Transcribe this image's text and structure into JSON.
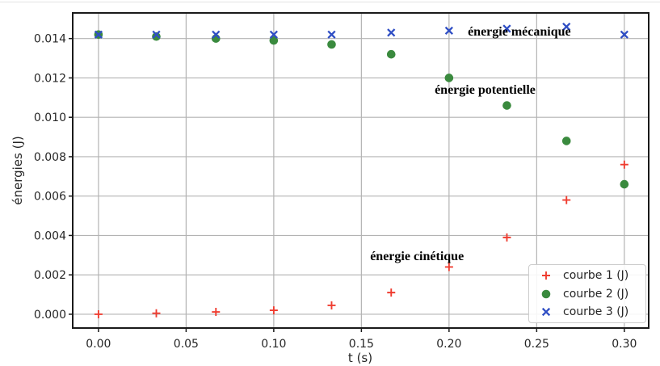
{
  "chart_data": {
    "type": "scatter",
    "title": "",
    "xlabel": "t (s)",
    "ylabel": "énergies (J)",
    "xlim": [
      -0.0147,
      0.3139
    ],
    "ylim": [
      -0.0007,
      0.0153
    ],
    "grid": true,
    "colors": {
      "grid": "#b3b3b3",
      "spine": "#1a1a1a",
      "tick_text": "#262626",
      "background": "#ffffff"
    },
    "x": [
      0.0,
      0.033,
      0.067,
      0.1,
      0.133,
      0.167,
      0.2,
      0.233,
      0.267,
      0.3
    ],
    "series": [
      {
        "name": "courbe 1 (J)",
        "marker": "plus",
        "color": "#ef3d30",
        "values": [
          0.0,
          5e-05,
          0.00012,
          0.0002,
          0.00045,
          0.0011,
          0.0024,
          0.0039,
          0.0058,
          0.0076
        ]
      },
      {
        "name": "courbe 2 (J)",
        "marker": "circle",
        "color": "#3a8a3e",
        "values": [
          0.0142,
          0.0141,
          0.014,
          0.0139,
          0.0137,
          0.0132,
          0.012,
          0.0106,
          0.0088,
          0.0066
        ]
      },
      {
        "name": "courbe 3 (J)",
        "marker": "x",
        "color": "#2f4ec4",
        "values": [
          0.0142,
          0.0142,
          0.0142,
          0.0142,
          0.0142,
          0.0143,
          0.0144,
          0.0145,
          0.0146,
          0.0142
        ]
      }
    ],
    "xtick_values": [
      0.0,
      0.05,
      0.1,
      0.15,
      0.2,
      0.25,
      0.3
    ],
    "xtick_labels": [
      "0.00",
      "0.05",
      "0.10",
      "0.15",
      "0.20",
      "0.25",
      "0.30"
    ],
    "ytick_values": [
      0.0,
      0.002,
      0.004,
      0.006,
      0.008,
      0.01,
      0.012,
      0.014
    ],
    "ytick_labels": [
      "0.000",
      "0.002",
      "0.004",
      "0.006",
      "0.008",
      "0.010",
      "0.012",
      "0.014"
    ],
    "annotations": [
      {
        "text": "énergie mécanique",
        "t": 0.2107,
        "v": 0.01432
      },
      {
        "text": "énergie potentielle",
        "t": 0.1918,
        "v": 0.0114
      },
      {
        "text": "énergie cinétique",
        "t": 0.155,
        "v": 0.00295
      }
    ],
    "legend": {
      "position": "lower right",
      "entries": [
        "courbe 1 (J)",
        "courbe 2 (J)",
        "courbe 3 (J)"
      ]
    }
  }
}
